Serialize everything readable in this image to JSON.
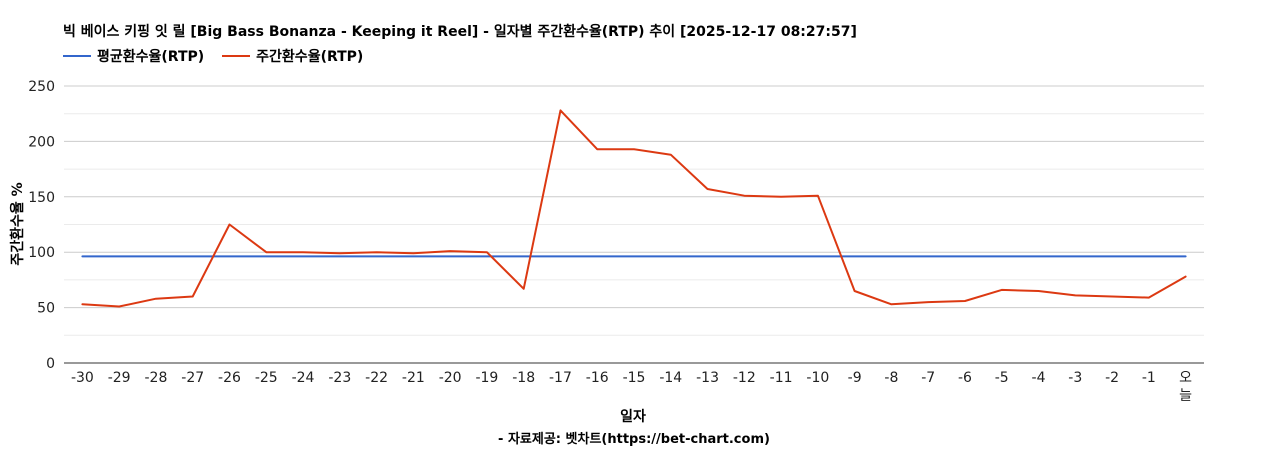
{
  "title": "빅 베이스 키핑 잇 릴 [Big Bass Bonanza - Keeping it Reel] - 일자별 주간환수율(RTP) 추이 [2025-12-17 08:27:57]",
  "source_note": "- 자료제공: 벳차트(https://bet-chart.com)",
  "colors": {
    "average": "#3366cc",
    "weekly": "#dc3912",
    "grid": "#cccccc",
    "minor_grid": "#ebebeb",
    "axis": "#333333"
  },
  "chart_data": {
    "type": "line",
    "xlabel": "일자",
    "ylabel": "주간환수율 %",
    "ylim": [
      0,
      250
    ],
    "yticks": [
      0,
      50,
      100,
      150,
      200,
      250
    ],
    "grid": true,
    "legend": "top-left",
    "categories": [
      "-30",
      "-29",
      "-28",
      "-27",
      "-26",
      "-25",
      "-24",
      "-23",
      "-22",
      "-21",
      "-20",
      "-19",
      "-18",
      "-17",
      "-16",
      "-15",
      "-14",
      "-13",
      "-12",
      "-11",
      "-10",
      "-9",
      "-8",
      "-7",
      "-6",
      "-5",
      "-4",
      "-3",
      "-2",
      "-1",
      "오늘"
    ],
    "series": [
      {
        "name": "평균환수율(RTP)",
        "color": "#3366cc",
        "values": [
          96.2,
          96.2,
          96.2,
          96.2,
          96.2,
          96.2,
          96.2,
          96.2,
          96.2,
          96.2,
          96.2,
          96.2,
          96.2,
          96.2,
          96.2,
          96.2,
          96.2,
          96.2,
          96.2,
          96.2,
          96.2,
          96.2,
          96.2,
          96.2,
          96.2,
          96.2,
          96.2,
          96.2,
          96.2,
          96.2,
          96.2
        ]
      },
      {
        "name": "주간환수율(RTP)",
        "color": "#dc3912",
        "values": [
          53,
          51,
          58,
          60,
          125,
          100,
          100,
          99,
          100,
          99,
          101,
          100,
          67,
          228,
          193,
          193,
          188,
          157,
          151,
          150,
          151,
          65,
          53,
          55,
          56,
          66,
          65,
          61,
          60,
          59,
          78
        ]
      }
    ]
  }
}
